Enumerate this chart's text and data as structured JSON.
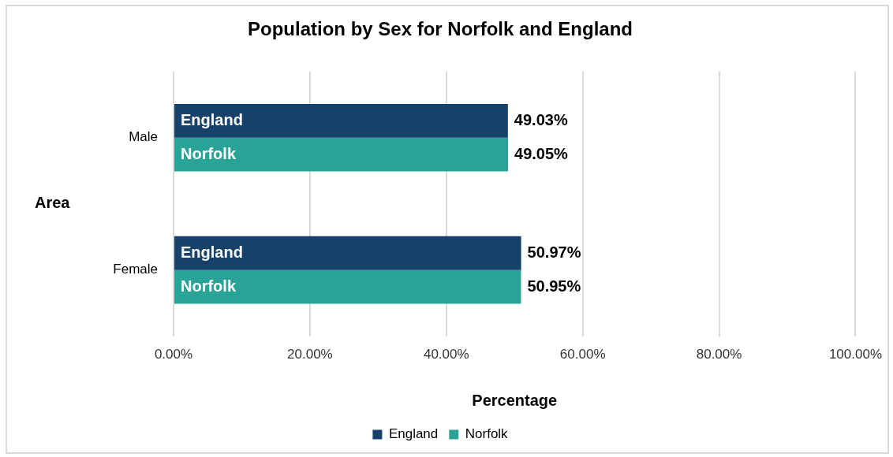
{
  "chart_data": {
    "type": "bar",
    "orientation": "horizontal",
    "title": "Population by Sex for Norfolk and England",
    "xlabel": "Percentage",
    "ylabel": "Area",
    "categories": [
      "Male",
      "Female"
    ],
    "series": [
      {
        "name": "England",
        "color": "#15416b",
        "values": [
          49.03,
          50.97
        ],
        "value_labels": [
          "49.03%",
          "50.97%"
        ]
      },
      {
        "name": "Norfolk",
        "color": "#29a398",
        "values": [
          49.05,
          50.95
        ],
        "value_labels": [
          "49.05%",
          "50.95%"
        ]
      }
    ],
    "xlim": [
      0,
      100
    ],
    "xticks": [
      {
        "value": 0,
        "label": "0.00%"
      },
      {
        "value": 20,
        "label": "20.00%"
      },
      {
        "value": 40,
        "label": "40.00%"
      },
      {
        "value": 60,
        "label": "60.00%"
      },
      {
        "value": 80,
        "label": "80.00%"
      },
      {
        "value": 100,
        "label": "100.00%"
      }
    ],
    "grid": "x",
    "legend": "bottom"
  }
}
